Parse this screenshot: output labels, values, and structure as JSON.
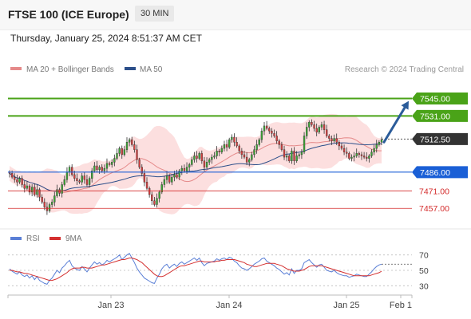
{
  "header": {
    "instrument": "FTSE 100 (ICE Europe)",
    "timeframe": "30 MIN",
    "datetime": "Thursday, January 25, 2024 8:51:37 AM CET"
  },
  "legend": {
    "ma20_label": "MA 20 + Bollinger Bands",
    "ma50_label": "MA 50",
    "credit": "Research © 2024 Trading Central",
    "rsi_label": "RSI",
    "rsi_ma_label": "9MA"
  },
  "colors": {
    "up": "#3aaa35",
    "down": "#d94040",
    "ma20": "#e58a8a",
    "ma50": "#2c4f8a",
    "bollinger_fill": "#fbd9d9",
    "target": "#4aa318",
    "pivot": "#1a5fd6",
    "support": "#d42b2b",
    "rsi": "#5a7fd6",
    "rsi_ma": "#d43030",
    "arrow": "#2b5c9a"
  },
  "chart_data": [
    {
      "type": "candlestick",
      "ylim": [
        7445,
        7560
      ],
      "x_ticks": [
        "Jan 23",
        "Jan 24",
        "Jan 25",
        "Feb 1"
      ],
      "levels": [
        {
          "value": 7545.0,
          "label": "7545.00",
          "kind": "target"
        },
        {
          "value": 7531.0,
          "label": "7531.00",
          "kind": "target"
        },
        {
          "value": 7512.5,
          "label": "7512.50",
          "kind": "last"
        },
        {
          "value": 7486.0,
          "label": "7486.00",
          "kind": "pivot"
        },
        {
          "value": 7471.0,
          "label": "7471.00",
          "kind": "support"
        },
        {
          "value": 7457.0,
          "label": "7457.00",
          "kind": "support"
        }
      ],
      "projection": {
        "from": 7510,
        "to": 7543
      },
      "series": [
        {
          "name": "FTSE 100",
          "close": [
            7485,
            7482,
            7480,
            7478,
            7481,
            7476,
            7473,
            7475,
            7470,
            7474,
            7468,
            7472,
            7466,
            7462,
            7458,
            7455,
            7460,
            7462,
            7467,
            7472,
            7469,
            7476,
            7480,
            7486,
            7490,
            7484,
            7481,
            7479,
            7478,
            7483,
            7480,
            7476,
            7481,
            7487,
            7491,
            7488,
            7490,
            7487,
            7489,
            7493,
            7492,
            7494,
            7497,
            7501,
            7505,
            7500,
            7504,
            7510,
            7512,
            7508,
            7504,
            7496,
            7490,
            7485,
            7478,
            7473,
            7468,
            7463,
            7460,
            7465,
            7470,
            7476,
            7480,
            7483,
            7478,
            7482,
            7484,
            7482,
            7487,
            7489,
            7487,
            7490,
            7492,
            7496,
            7499,
            7497,
            7501,
            7495,
            7490,
            7494,
            7496,
            7498,
            7499,
            7503,
            7502,
            7505,
            7508,
            7506,
            7512,
            7514,
            7510,
            7507,
            7503,
            7500,
            7498,
            7494,
            7496,
            7500,
            7504,
            7508,
            7512,
            7519,
            7523,
            7521,
            7519,
            7517,
            7515,
            7511,
            7508,
            7504,
            7498,
            7499,
            7495,
            7503,
            7495,
            7499,
            7500,
            7502,
            7515,
            7522,
            7526,
            7524,
            7521,
            7518,
            7522,
            7524,
            7520,
            7515,
            7513,
            7511,
            7513,
            7510,
            7507,
            7505,
            7502,
            7501,
            7497,
            7498,
            7499,
            7501,
            7500,
            7499,
            7498,
            7497,
            7499,
            7502,
            7505,
            7508,
            7510,
            7512
          ]
        }
      ]
    },
    {
      "type": "line",
      "ylim": [
        20,
        80
      ],
      "y_ticks": [
        70,
        50,
        30
      ],
      "series": [
        {
          "name": "RSI",
          "values": [
            52,
            49,
            47,
            45,
            48,
            44,
            42,
            44,
            40,
            43,
            38,
            42,
            37,
            35,
            33,
            32,
            37,
            40,
            45,
            50,
            47,
            53,
            56,
            60,
            63,
            56,
            53,
            51,
            50,
            55,
            52,
            48,
            53,
            57,
            61,
            58,
            60,
            57,
            59,
            63,
            61,
            63,
            65,
            67,
            70,
            64,
            67,
            70,
            72,
            66,
            60,
            53,
            48,
            44,
            40,
            38,
            36,
            34,
            33,
            40,
            45,
            52,
            56,
            58,
            53,
            56,
            58,
            55,
            59,
            61,
            58,
            60,
            62,
            64,
            66,
            63,
            66,
            60,
            56,
            59,
            60,
            61,
            62,
            65,
            63,
            65,
            66,
            64,
            67,
            66,
            62,
            60,
            56,
            53,
            52,
            50,
            52,
            55,
            58,
            60,
            62,
            65,
            66,
            62,
            60,
            58,
            56,
            53,
            51,
            48,
            45,
            47,
            44,
            52,
            46,
            50,
            50,
            52,
            60,
            62,
            64,
            60,
            57,
            54,
            57,
            58,
            54,
            50,
            49,
            48,
            50,
            47,
            45,
            44,
            43,
            43,
            41,
            42,
            43,
            45,
            44,
            43,
            42,
            42,
            45,
            48,
            52,
            55,
            57,
            58
          ]
        },
        {
          "name": "9MA",
          "values": [
            50,
            50,
            49,
            48,
            48,
            47,
            46,
            46,
            45,
            44,
            43,
            42,
            41,
            40,
            39,
            38,
            37,
            37,
            38,
            39,
            41,
            43,
            45,
            47,
            50,
            52,
            53,
            53,
            53,
            54,
            54,
            53,
            53,
            53,
            54,
            55,
            56,
            57,
            57,
            58,
            59,
            60,
            61,
            62,
            63,
            64,
            64,
            65,
            66,
            66,
            65,
            64,
            62,
            60,
            57,
            54,
            51,
            48,
            45,
            43,
            42,
            42,
            43,
            45,
            47,
            49,
            51,
            53,
            55,
            56,
            56,
            57,
            58,
            59,
            60,
            61,
            62,
            62,
            61,
            61,
            61,
            61,
            61,
            62,
            62,
            63,
            63,
            64,
            64,
            64,
            64,
            63,
            62,
            61,
            60,
            58,
            57,
            56,
            55,
            55,
            56,
            57,
            58,
            59,
            59,
            59,
            59,
            58,
            57,
            56,
            54,
            52,
            51,
            50,
            49,
            49,
            49,
            50,
            51,
            53,
            55,
            56,
            56,
            56,
            56,
            56,
            55,
            54,
            53,
            52,
            51,
            50,
            49,
            48,
            47,
            46,
            45,
            44,
            43,
            43,
            43,
            43,
            43,
            43,
            43,
            44,
            45,
            46,
            47,
            49
          ]
        }
      ]
    }
  ]
}
